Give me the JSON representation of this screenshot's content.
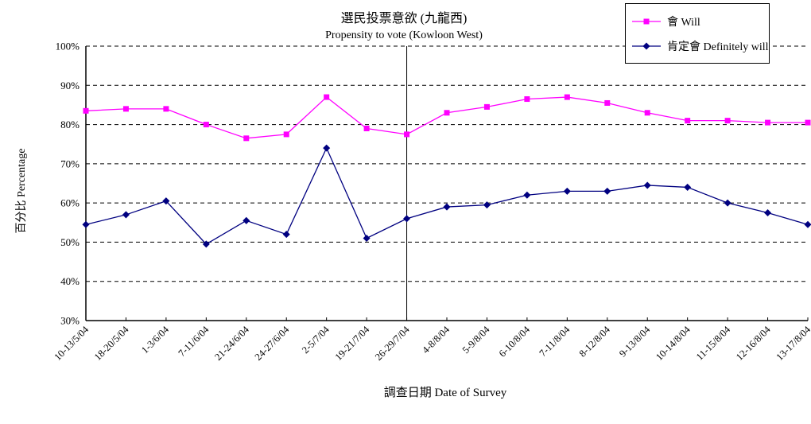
{
  "chart_data": {
    "type": "line",
    "title": "選民投票意欲 (九龍西)",
    "subtitle": "Propensity to vote (Kowloon West)",
    "xlabel": "調查日期 Date of Survey",
    "ylabel": "百分比 Percentage",
    "ylim": [
      30,
      100
    ],
    "y_tick_step": 10,
    "y_tick_suffix": "%",
    "grid": "horizontal dashed black lines at 40%-100%",
    "legend_position": "top-right",
    "vline_category": "26-29/7/04",
    "categories": [
      "10-13/5/04",
      "18-20/5/04",
      "1-3/6/04",
      "7-11/6/04",
      "21-24/6/04",
      "24-27/6/04",
      "2-5/7/04",
      "19-21/7/04",
      "26-29/7/04",
      "4-8/8/04",
      "5-9/8/04",
      "6-10/8/04",
      "7-11/8/04",
      "8-12/8/04",
      "9-13/8/04",
      "10-14/8/04",
      "11-15/8/04",
      "12-16/8/04",
      "13-17/8/04"
    ],
    "series": [
      {
        "name": "會 Will",
        "color": "#FF00FF",
        "marker": "square",
        "values": [
          83.5,
          84,
          84,
          80,
          76.5,
          77.5,
          87,
          79,
          77.5,
          83,
          84.5,
          86.5,
          87,
          85.5,
          83,
          81,
          81,
          80.5,
          80.5
        ]
      },
      {
        "name": "肯定會 Definitely will",
        "color": "#000080",
        "marker": "diamond",
        "values": [
          54.5,
          57,
          60.5,
          49.5,
          55.5,
          52,
          74,
          51,
          56,
          59,
          59.5,
          62,
          63,
          63,
          64.5,
          64,
          60,
          57.5,
          54.5
        ]
      }
    ]
  },
  "colors": {
    "background": "#FFFFFF",
    "axis": "#000000",
    "gridline": "#000000"
  }
}
